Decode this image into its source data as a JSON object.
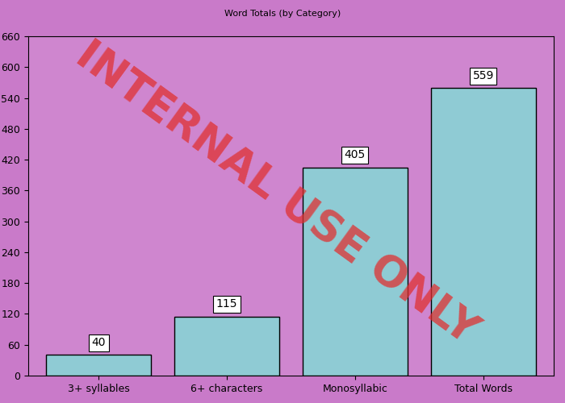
{
  "chart_data": {
    "type": "bar",
    "title": "Word Totals (by Category)",
    "categories": [
      "3+ syllables",
      "6+ characters",
      "Monosyllabic",
      "Total Words"
    ],
    "values": [
      40,
      115,
      405,
      559
    ],
    "color": "#8fcbd4",
    "ylim": [
      0,
      660
    ],
    "yticks": [
      0,
      60,
      120,
      180,
      240,
      300,
      360,
      420,
      480,
      540,
      600,
      660
    ],
    "grid": false,
    "data_labels": true,
    "annotations": [
      "INTERNAL USE ONLY"
    ]
  }
}
